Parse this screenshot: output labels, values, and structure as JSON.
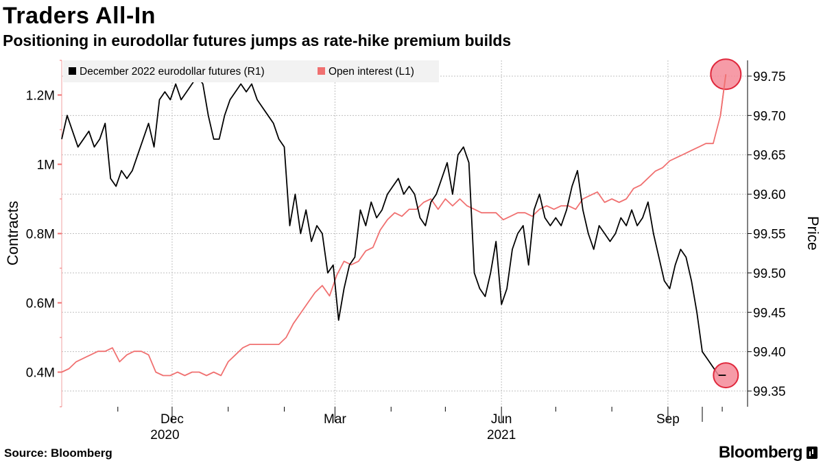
{
  "header": {
    "title": "Traders All-In",
    "subtitle": "Positioning in eurodollar futures jumps as rate-hike premium builds"
  },
  "footer": {
    "source": "Source: Bloomberg",
    "brand": "Bloomberg"
  },
  "colors": {
    "futures": "#000000",
    "open_interest": "#f07070",
    "marker_fill": "#f48a98",
    "marker_stroke": "#e0283c",
    "grid": "#bfbfbf",
    "legend_bg": "#f2f2f2"
  },
  "chart_data": {
    "type": "line",
    "title": "Traders All-In",
    "subtitle": "Positioning in eurodollar futures jumps as rate-hike premium builds",
    "x_range": [
      "2020-10-01",
      "2021-10-15"
    ],
    "x_month_ticks": [
      {
        "date": "2020-12-01",
        "label": "Dec"
      },
      {
        "date": "2021-03-01",
        "label": "Mar"
      },
      {
        "date": "2021-06-01",
        "label": "Jun"
      },
      {
        "date": "2021-09-01",
        "label": "Sep"
      }
    ],
    "x_year_labels": [
      {
        "date": "2020-11-27",
        "label": "2020"
      },
      {
        "date": "2021-06-01",
        "label": "2021"
      }
    ],
    "x_minor_ticks": [
      "2020-11-01",
      "2021-01-01",
      "2021-02-01",
      "2021-04-01",
      "2021-05-01",
      "2021-07-01",
      "2021-08-01",
      "2021-10-01"
    ],
    "y_left": {
      "label": "Contracts",
      "range": [
        0.3,
        1.3
      ],
      "ticks": [
        0.4,
        0.6,
        0.8,
        1.0,
        1.2
      ],
      "tick_labels": [
        "0.4M",
        "0.6M",
        "0.8M",
        "1M",
        "1.2M"
      ],
      "units": "millions of contracts"
    },
    "y_right": {
      "label": "Price",
      "range": [
        99.33,
        99.77
      ],
      "ticks": [
        99.35,
        99.4,
        99.45,
        99.5,
        99.55,
        99.6,
        99.65,
        99.7,
        99.75
      ],
      "tick_labels": [
        "99.35",
        "99.40",
        "99.45",
        "99.50",
        "99.55",
        "99.60",
        "99.65",
        "99.70",
        "99.75"
      ]
    },
    "grid": true,
    "legend_placement": "top-left",
    "series": [
      {
        "name": "December 2022 eurodollar futures (R1)",
        "axis": "right",
        "x": [
          "2020-10-01",
          "2020-10-04",
          "2020-10-07",
          "2020-10-10",
          "2020-10-13",
          "2020-10-16",
          "2020-10-19",
          "2020-10-22",
          "2020-10-25",
          "2020-10-28",
          "2020-10-31",
          "2020-11-03",
          "2020-11-06",
          "2020-11-09",
          "2020-11-12",
          "2020-11-15",
          "2020-11-18",
          "2020-11-21",
          "2020-11-24",
          "2020-11-27",
          "2020-11-30",
          "2020-12-03",
          "2020-12-06",
          "2020-12-09",
          "2020-12-12",
          "2020-12-15",
          "2020-12-18",
          "2020-12-21",
          "2020-12-24",
          "2020-12-27",
          "2020-12-30",
          "2021-01-02",
          "2021-01-05",
          "2021-01-08",
          "2021-01-11",
          "2021-01-14",
          "2021-01-17",
          "2021-01-20",
          "2021-01-23",
          "2021-01-26",
          "2021-01-29",
          "2021-02-01",
          "2021-02-04",
          "2021-02-07",
          "2021-02-10",
          "2021-02-13",
          "2021-02-16",
          "2021-02-19",
          "2021-02-22",
          "2021-02-25",
          "2021-02-28",
          "2021-03-03",
          "2021-03-06",
          "2021-03-09",
          "2021-03-12",
          "2021-03-15",
          "2021-03-18",
          "2021-03-21",
          "2021-03-24",
          "2021-03-27",
          "2021-03-30",
          "2021-04-02",
          "2021-04-05",
          "2021-04-08",
          "2021-04-11",
          "2021-04-14",
          "2021-04-17",
          "2021-04-20",
          "2021-04-23",
          "2021-04-26",
          "2021-04-29",
          "2021-05-02",
          "2021-05-05",
          "2021-05-08",
          "2021-05-11",
          "2021-05-14",
          "2021-05-17",
          "2021-05-20",
          "2021-05-23",
          "2021-05-26",
          "2021-05-29",
          "2021-06-01",
          "2021-06-04",
          "2021-06-07",
          "2021-06-10",
          "2021-06-13",
          "2021-06-16",
          "2021-06-19",
          "2021-06-22",
          "2021-06-25",
          "2021-06-28",
          "2021-07-01",
          "2021-07-04",
          "2021-07-07",
          "2021-07-10",
          "2021-07-13",
          "2021-07-16",
          "2021-07-19",
          "2021-07-22",
          "2021-07-25",
          "2021-07-28",
          "2021-07-31",
          "2021-08-03",
          "2021-08-06",
          "2021-08-09",
          "2021-08-12",
          "2021-08-15",
          "2021-08-18",
          "2021-08-21",
          "2021-08-24",
          "2021-08-27",
          "2021-08-30",
          "2021-09-02",
          "2021-09-05",
          "2021-09-08",
          "2021-09-11",
          "2021-09-14",
          "2021-09-17",
          "2021-09-20",
          "2021-09-23",
          "2021-09-26",
          "2021-09-29",
          "2021-10-01"
        ],
        "values": [
          99.67,
          99.7,
          99.68,
          99.66,
          99.67,
          99.68,
          99.66,
          99.67,
          99.69,
          99.62,
          99.61,
          99.63,
          99.62,
          99.63,
          99.65,
          99.67,
          99.69,
          99.66,
          99.72,
          99.73,
          99.72,
          99.74,
          99.72,
          99.73,
          99.74,
          99.75,
          99.74,
          99.7,
          99.67,
          99.67,
          99.7,
          99.72,
          99.73,
          99.74,
          99.73,
          99.74,
          99.72,
          99.71,
          99.7,
          99.69,
          99.67,
          99.66,
          99.56,
          99.6,
          99.55,
          99.58,
          99.54,
          99.56,
          99.55,
          99.5,
          99.51,
          99.44,
          99.48,
          99.51,
          99.52,
          99.58,
          99.56,
          99.59,
          99.57,
          99.58,
          99.6,
          99.61,
          99.62,
          99.6,
          99.61,
          99.6,
          99.57,
          99.56,
          99.59,
          99.6,
          99.62,
          99.64,
          99.6,
          99.65,
          99.66,
          99.64,
          99.5,
          99.48,
          99.47,
          99.5,
          99.54,
          99.46,
          99.48,
          99.53,
          99.55,
          99.56,
          99.51,
          99.58,
          99.6,
          99.57,
          99.56,
          99.57,
          99.56,
          99.58,
          99.61,
          99.63,
          99.58,
          99.55,
          99.53,
          99.56,
          99.55,
          99.54,
          99.55,
          99.57,
          99.56,
          99.58,
          99.56,
          99.57,
          99.59,
          99.55,
          99.52,
          99.49,
          99.48,
          99.51,
          99.53,
          99.52,
          99.49,
          99.45,
          99.4,
          99.39,
          99.38,
          99.37,
          99.37
        ],
        "marker": {
          "date": "2021-10-03",
          "value": 99.37
        }
      },
      {
        "name": "Open interest (L1)",
        "axis": "left",
        "x": [
          "2020-10-01",
          "2020-10-05",
          "2020-10-09",
          "2020-10-13",
          "2020-10-17",
          "2020-10-21",
          "2020-10-25",
          "2020-10-29",
          "2020-11-02",
          "2020-11-06",
          "2020-11-10",
          "2020-11-14",
          "2020-11-18",
          "2020-11-22",
          "2020-11-26",
          "2020-11-30",
          "2020-12-04",
          "2020-12-08",
          "2020-12-12",
          "2020-12-16",
          "2020-12-20",
          "2020-12-24",
          "2020-12-28",
          "2021-01-01",
          "2021-01-05",
          "2021-01-09",
          "2021-01-13",
          "2021-01-17",
          "2021-01-21",
          "2021-01-25",
          "2021-01-29",
          "2021-02-02",
          "2021-02-06",
          "2021-02-10",
          "2021-02-14",
          "2021-02-18",
          "2021-02-22",
          "2021-02-26",
          "2021-03-02",
          "2021-03-06",
          "2021-03-10",
          "2021-03-14",
          "2021-03-18",
          "2021-03-22",
          "2021-03-26",
          "2021-03-30",
          "2021-04-03",
          "2021-04-07",
          "2021-04-11",
          "2021-04-15",
          "2021-04-19",
          "2021-04-23",
          "2021-04-27",
          "2021-05-01",
          "2021-05-05",
          "2021-05-09",
          "2021-05-13",
          "2021-05-17",
          "2021-05-21",
          "2021-05-25",
          "2021-05-29",
          "2021-06-02",
          "2021-06-06",
          "2021-06-10",
          "2021-06-14",
          "2021-06-18",
          "2021-06-22",
          "2021-06-26",
          "2021-06-30",
          "2021-07-04",
          "2021-07-08",
          "2021-07-12",
          "2021-07-16",
          "2021-07-20",
          "2021-07-24",
          "2021-07-28",
          "2021-08-01",
          "2021-08-05",
          "2021-08-09",
          "2021-08-13",
          "2021-08-17",
          "2021-08-21",
          "2021-08-25",
          "2021-08-29",
          "2021-09-02",
          "2021-09-06",
          "2021-09-10",
          "2021-09-14",
          "2021-09-18",
          "2021-09-22",
          "2021-09-26",
          "2021-09-30",
          "2021-10-03"
        ],
        "values": [
          0.4,
          0.41,
          0.43,
          0.44,
          0.45,
          0.46,
          0.46,
          0.47,
          0.43,
          0.45,
          0.46,
          0.46,
          0.45,
          0.4,
          0.39,
          0.39,
          0.4,
          0.39,
          0.4,
          0.4,
          0.39,
          0.4,
          0.39,
          0.43,
          0.45,
          0.47,
          0.48,
          0.48,
          0.48,
          0.48,
          0.48,
          0.5,
          0.54,
          0.57,
          0.6,
          0.63,
          0.65,
          0.62,
          0.68,
          0.72,
          0.71,
          0.72,
          0.75,
          0.76,
          0.81,
          0.84,
          0.86,
          0.85,
          0.87,
          0.87,
          0.89,
          0.9,
          0.87,
          0.9,
          0.88,
          0.9,
          0.88,
          0.87,
          0.86,
          0.86,
          0.86,
          0.84,
          0.85,
          0.86,
          0.86,
          0.85,
          0.87,
          0.88,
          0.87,
          0.88,
          0.88,
          0.87,
          0.9,
          0.91,
          0.92,
          0.89,
          0.9,
          0.89,
          0.9,
          0.93,
          0.94,
          0.96,
          0.98,
          0.99,
          1.01,
          1.02,
          1.03,
          1.04,
          1.05,
          1.06,
          1.06,
          1.14,
          1.26
        ],
        "marker": {
          "date": "2021-10-03",
          "value": 1.26
        }
      }
    ]
  }
}
